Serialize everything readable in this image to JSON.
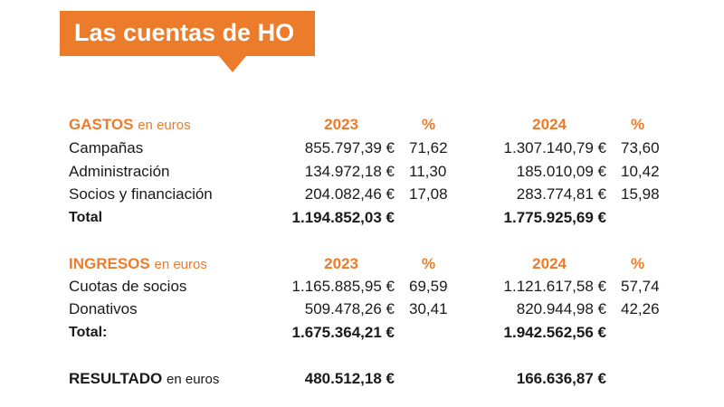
{
  "title": "Las cuentas de HO",
  "gastos": {
    "label": "GASTOS",
    "unit": "en euros",
    "col_2023": "2023",
    "col_pct1": "%",
    "col_2024": "2024",
    "col_pct2": "%",
    "rows": [
      {
        "label": "Campañas",
        "v2023": "855.797,39 €",
        "p2023": "71,62",
        "v2024": "1.307.140,79 €",
        "p2024": "73,60"
      },
      {
        "label": "Administración",
        "v2023": "134.972,18 €",
        "p2023": "11,30",
        "v2024": "185.010,09 €",
        "p2024": "10,42"
      },
      {
        "label": "Socios y financiación",
        "v2023": "204.082,46 €",
        "p2023": "17,08",
        "v2024": "283.774,81 €",
        "p2024": "15,98"
      }
    ],
    "total": {
      "label": "Total",
      "v2023": "1.194.852,03 €",
      "v2024": "1.775.925,69 €"
    }
  },
  "ingresos": {
    "label": "INGRESOS",
    "unit": "en euros",
    "col_2023": "2023",
    "col_pct1": "%",
    "col_2024": "2024",
    "col_pct2": "%",
    "rows": [
      {
        "label": "Cuotas de socios",
        "v2023": "1.165.885,95 €",
        "p2023": "69,59",
        "v2024": "1.121.617,58 €",
        "p2024": "57,74"
      },
      {
        "label": "Donativos",
        "v2023": "509.478,26 €",
        "p2023": "30,41",
        "v2024": "820.944,98 €",
        "p2024": "42,26"
      }
    ],
    "total": {
      "label": "Total:",
      "v2023": "1.675.364,21 €",
      "v2024": "1.942.562,56 €"
    }
  },
  "resultado": {
    "label": "RESULTADO",
    "unit": "en euros",
    "v2023": "480.512,18 €",
    "v2024": "166.636,87 €"
  },
  "colors": {
    "accent": "#ec7c2b",
    "text": "#1a1a1a"
  }
}
